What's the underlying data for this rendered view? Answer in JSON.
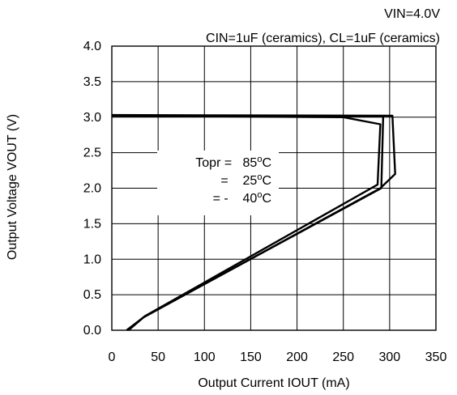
{
  "chart_data": {
    "type": "line",
    "title_lines": [
      "VIN=4.0V",
      "CIN=1uF (ceramics), CL=1uF (ceramics)"
    ],
    "xlabel": "Output Current IOUT (mA)",
    "ylabel": "Output Voltage VOUT (V)",
    "xlim": [
      0,
      350
    ],
    "ylim": [
      0.0,
      4.0
    ],
    "x_ticks": [
      0,
      50,
      100,
      150,
      200,
      250,
      300,
      350
    ],
    "y_ticks": [
      "0.0",
      "0.5",
      "1.0",
      "1.5",
      "2.0",
      "2.5",
      "3.0",
      "3.5",
      "4.0"
    ],
    "grid": true,
    "legend": {
      "lines": [
        {
          "prefix": "Topr = ",
          "value": "85",
          "unit": "C"
        },
        {
          "prefix": "= ",
          "value": "25",
          "unit": "C"
        },
        {
          "prefix": "= - ",
          "value": "40",
          "unit": "C"
        }
      ],
      "degree_symbol": "o"
    },
    "series": [
      {
        "points": [
          [
            0,
            3.02
          ],
          [
            250,
            3.0
          ],
          [
            290,
            2.9
          ],
          [
            287,
            2.05
          ],
          [
            36,
            0.2
          ],
          [
            18,
            0.0
          ]
        ]
      },
      {
        "points": [
          [
            0,
            3.02
          ],
          [
            293,
            3.01
          ],
          [
            291,
            2.0
          ],
          [
            35,
            0.19
          ],
          [
            17,
            0.0
          ]
        ]
      },
      {
        "points": [
          [
            0,
            3.03
          ],
          [
            303,
            3.02
          ],
          [
            306,
            2.2
          ],
          [
            290,
            2.0
          ],
          [
            34,
            0.18
          ],
          [
            16,
            0.0
          ]
        ]
      }
    ]
  }
}
